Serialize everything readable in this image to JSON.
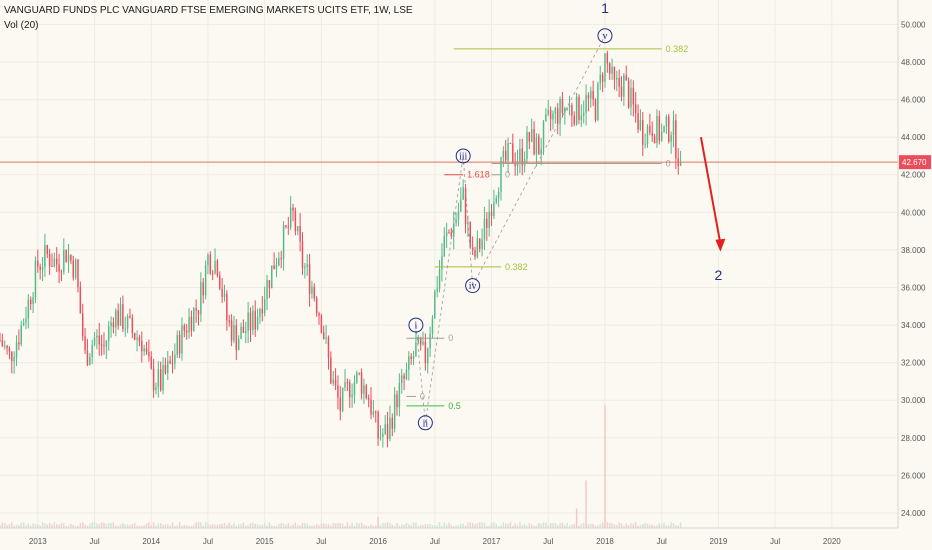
{
  "header": {
    "title": "VANGUARD FUNDS PLC VANGUARD FTSE EMERGING MARKETS UCITS ETF, 1W, LSE",
    "volume_label": "Vol (20)"
  },
  "chart_data": {
    "type": "candlestick",
    "interval": "1W",
    "x_range": [
      "2012-09",
      "2020-08"
    ],
    "y_range": [
      23.2,
      51.3
    ],
    "y_ticks": [
      "24.000",
      "26.000",
      "28.000",
      "30.000",
      "32.000",
      "34.000",
      "36.000",
      "38.000",
      "40.000",
      "42.000",
      "44.000",
      "46.000",
      "48.000",
      "50.000"
    ],
    "x_ticks": [
      {
        "label": "2013",
        "date": "2013-01"
      },
      {
        "label": "Jul",
        "date": "2013-07"
      },
      {
        "label": "2014",
        "date": "2014-01"
      },
      {
        "label": "Jul",
        "date": "2014-07"
      },
      {
        "label": "2015",
        "date": "2015-01"
      },
      {
        "label": "Jul",
        "date": "2015-07"
      },
      {
        "label": "2016",
        "date": "2016-01"
      },
      {
        "label": "Jul",
        "date": "2016-07"
      },
      {
        "label": "2017",
        "date": "2017-01"
      },
      {
        "label": "Jul",
        "date": "2017-07"
      },
      {
        "label": "2018",
        "date": "2018-01"
      },
      {
        "label": "Jul",
        "date": "2018-07"
      },
      {
        "label": "2019",
        "date": "2019-01"
      },
      {
        "label": "Jul",
        "date": "2019-07"
      },
      {
        "label": "2020",
        "date": "2020-01"
      }
    ],
    "last_price": "42.670",
    "price_path": [
      [
        "2012-09",
        33.2
      ],
      [
        "2012-10",
        32.3
      ],
      [
        "2012-11",
        33.5
      ],
      [
        "2012-12",
        35.2
      ],
      [
        "2013-01",
        37.2
      ],
      [
        "2013-02",
        37.7
      ],
      [
        "2013-03",
        37.3
      ],
      [
        "2013-04",
        37.9
      ],
      [
        "2013-05",
        37.0
      ],
      [
        "2013-06",
        32.3
      ],
      [
        "2013-07",
        33.3
      ],
      [
        "2013-08",
        32.8
      ],
      [
        "2013-09",
        34.6
      ],
      [
        "2013-10",
        34.3
      ],
      [
        "2013-11",
        33.6
      ],
      [
        "2013-12",
        33.2
      ],
      [
        "2014-01",
        31.2
      ],
      [
        "2014-02",
        30.9
      ],
      [
        "2014-03",
        31.8
      ],
      [
        "2014-04",
        33.2
      ],
      [
        "2014-05",
        34.3
      ],
      [
        "2014-06",
        35.1
      ],
      [
        "2014-07",
        37.6
      ],
      [
        "2014-08",
        37.3
      ],
      [
        "2014-09",
        34.3
      ],
      [
        "2014-10",
        33.3
      ],
      [
        "2014-11",
        33.8
      ],
      [
        "2014-12",
        34.3
      ],
      [
        "2015-01",
        35.8
      ],
      [
        "2015-02",
        37.3
      ],
      [
        "2015-03",
        38.6
      ],
      [
        "2015-04",
        39.8
      ],
      [
        "2015-05",
        37.3
      ],
      [
        "2015-06",
        36.1
      ],
      [
        "2015-07",
        34.3
      ],
      [
        "2015-08",
        31.3
      ],
      [
        "2015-09",
        29.6
      ],
      [
        "2015-10",
        30.8
      ],
      [
        "2015-11",
        31.2
      ],
      [
        "2015-12",
        30.2
      ],
      [
        "2016-01",
        28.1
      ],
      [
        "2016-02",
        28.3
      ],
      [
        "2016-03",
        30.2
      ],
      [
        "2016-04",
        31.3
      ],
      [
        "2016-05",
        32.7
      ],
      [
        "2016-06",
        32.3
      ],
      [
        "2016-07",
        35.6
      ],
      [
        "2016-08",
        38.4
      ],
      [
        "2016-09",
        39.4
      ],
      [
        "2016-10",
        40.8
      ],
      [
        "2016-11",
        37.4
      ],
      [
        "2016-12",
        38.6
      ],
      [
        "2017-01",
        40.6
      ],
      [
        "2017-02",
        42.3
      ],
      [
        "2017-03",
        43.1
      ],
      [
        "2017-04",
        42.9
      ],
      [
        "2017-05",
        43.9
      ],
      [
        "2017-06",
        43.4
      ],
      [
        "2017-07",
        44.8
      ],
      [
        "2017-08",
        45.3
      ],
      [
        "2017-09",
        45.6
      ],
      [
        "2017-10",
        45.4
      ],
      [
        "2017-11",
        45.9
      ],
      [
        "2017-12",
        45.6
      ],
      [
        "2018-01",
        48.2
      ],
      [
        "2018-02",
        46.6
      ],
      [
        "2018-03",
        46.9
      ],
      [
        "2018-04",
        45.5
      ],
      [
        "2018-05",
        44.3
      ],
      [
        "2018-06",
        44.6
      ],
      [
        "2018-07",
        44.1
      ],
      [
        "2018-08",
        44.6
      ],
      [
        "2018-09",
        42.67
      ]
    ],
    "volume_spikes": [
      {
        "date": "2016-01",
        "volume_pct": 8
      },
      {
        "date": "2017-10",
        "volume_pct": 14
      },
      {
        "date": "2018-01",
        "volume_pct": 88
      },
      {
        "date": "2017-11",
        "volume_pct": 34
      }
    ],
    "annotations": {
      "wave_labels": [
        {
          "text": "i",
          "date": "2016-05",
          "price": 34.0
        },
        {
          "text": "ii",
          "date": "2016-06",
          "price": 28.8
        },
        {
          "text": "iii",
          "date": "2016-10",
          "price": 43.0
        },
        {
          "text": "iv",
          "date": "2016-11",
          "price": 36.1
        },
        {
          "text": "v",
          "date": "2018-01",
          "price": 49.4
        }
      ],
      "major_labels": [
        {
          "text": "1",
          "date": "2018-01",
          "price": 50.6
        },
        {
          "text": "2",
          "date": "2019-01",
          "price": 36.4
        }
      ],
      "fib_levels": [
        {
          "text": "0.382",
          "price": 48.7,
          "from": "2016-09",
          "to": "2018-07",
          "color": "#a8c23a"
        },
        {
          "text": "1.618",
          "price": 42.0,
          "from": "2016-08",
          "to": "2016-10",
          "color": "#e34a4a"
        },
        {
          "text": "0",
          "price": 42.6,
          "from": "2017-01",
          "to": "2018-07",
          "color": "#a0a0a0"
        },
        {
          "text": "0",
          "price": 42.0,
          "from": "2017-01",
          "to": "2017-02",
          "color": "#a0a0a0"
        },
        {
          "text": "0.382",
          "price": 37.1,
          "from": "2016-07",
          "to": "2017-02",
          "color": "#a8c23a"
        },
        {
          "text": "0",
          "price": 33.3,
          "from": "2016-04",
          "to": "2016-08",
          "color": "#a0a0a0"
        },
        {
          "text": "0.5",
          "price": 29.7,
          "from": "2016-04",
          "to": "2016-08",
          "color": "#3aba4a"
        },
        {
          "text": "0",
          "price": 30.2,
          "from": "2016-04",
          "to": "2016-05",
          "color": "#a0a0a0"
        }
      ],
      "arrow": {
        "from_date": "2018-12",
        "from_price": 44.0,
        "to_date": "2019-01",
        "to_price": 37.9,
        "color": "#e32020"
      }
    },
    "colors": {
      "up": "#53b987",
      "down": "#eb4d5c",
      "price_line": "#e0765f",
      "wave_label": "#1f2c8c",
      "background": "#fbf9f1"
    }
  }
}
